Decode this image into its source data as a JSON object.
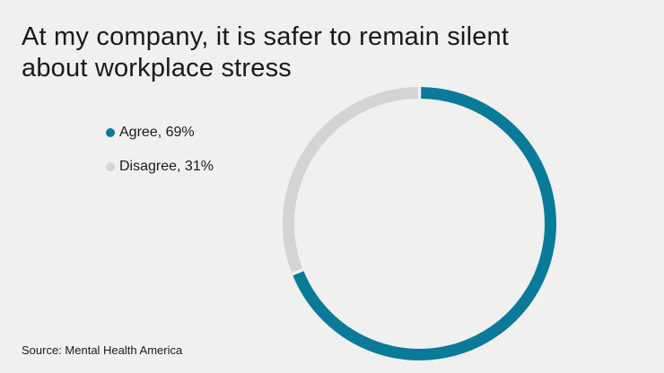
{
  "chart_data": {
    "type": "pie",
    "variant": "donut",
    "title": "At my company, it is safer to remain silent about workplace stress",
    "series": [
      {
        "name": "Agree",
        "label": "Agree, 69%",
        "value": 69,
        "color": "#0a7a99"
      },
      {
        "name": "Disagree",
        "label": "Disagree, 31%",
        "value": 31,
        "color": "#d5d3d3"
      }
    ],
    "legend_position": "left",
    "start": "top, clockwise"
  },
  "source": "Source: Mental Health America"
}
